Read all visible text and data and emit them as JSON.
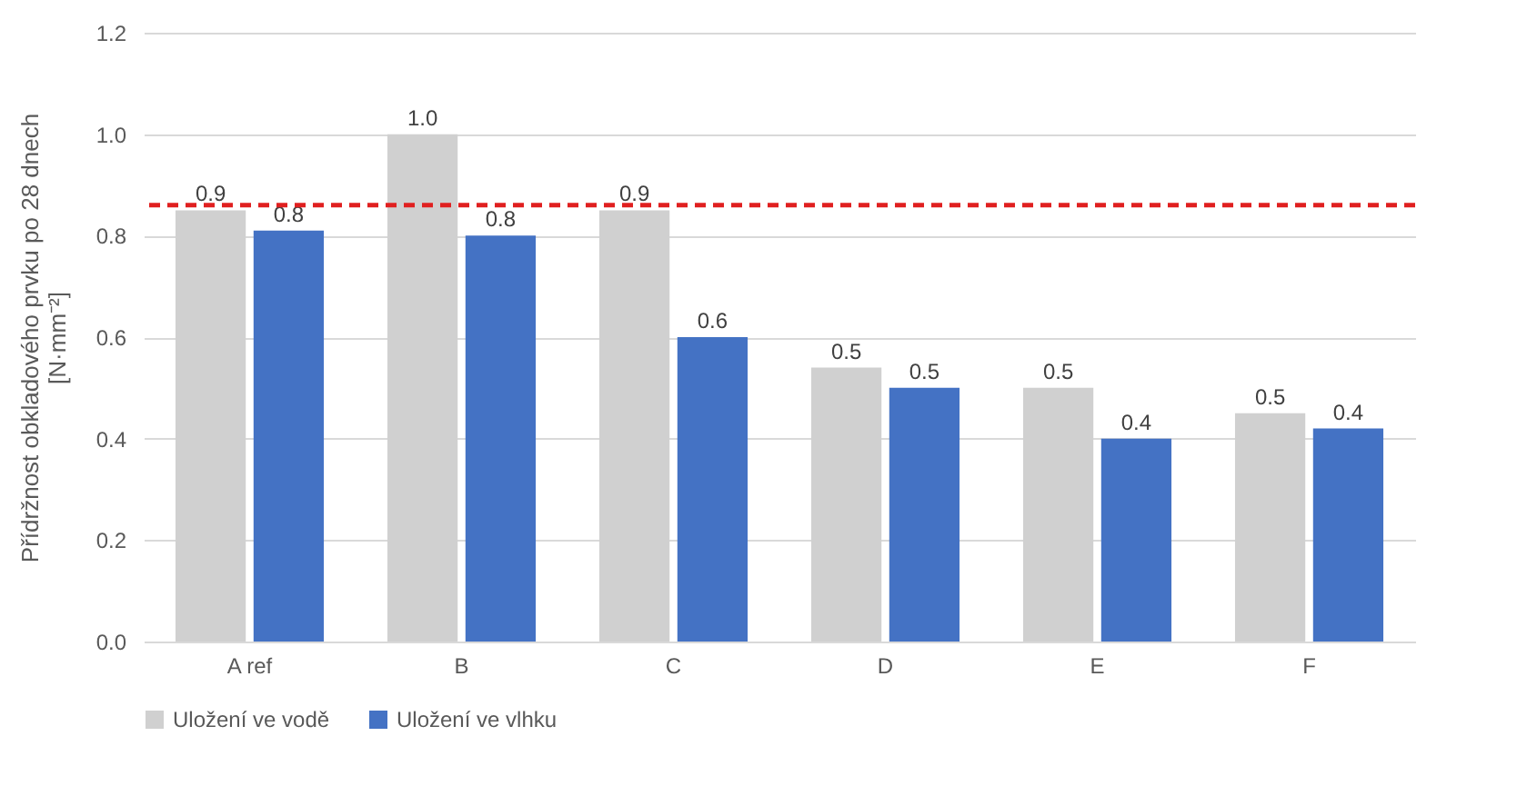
{
  "chart_data": {
    "type": "bar",
    "ylabel": "Přídržnost obkladového prvku po 28 dnech\n[N·mm⁻²]",
    "categories": [
      "A ref",
      "B",
      "C",
      "D",
      "E",
      "F"
    ],
    "series": [
      {
        "name": "Uložení ve vodě",
        "color": "#d0d0d0",
        "values": [
          0.85,
          1.0,
          0.85,
          0.54,
          0.5,
          0.45
        ],
        "value_labels": [
          "0.9",
          "1.0",
          "0.9",
          "0.5",
          "0.5",
          "0.5"
        ]
      },
      {
        "name": "Uložení ve vlhku",
        "color": "#4472c4",
        "values": [
          0.81,
          0.8,
          0.6,
          0.5,
          0.4,
          0.42
        ],
        "value_labels": [
          "0.8",
          "0.8",
          "0.6",
          "0.5",
          "0.4",
          "0.4"
        ]
      }
    ],
    "ylim": [
      0,
      1.2
    ],
    "yticks": [
      {
        "value": 0,
        "label": "0.0"
      },
      0.2,
      0.4,
      0.6,
      0.8,
      {
        "value": 1,
        "label": "1.0"
      },
      1.2
    ],
    "ref_lines": [
      {
        "axis": "y",
        "value": 0.86,
        "color": "#e02020",
        "line_style": "dashed"
      }
    ],
    "grid": "y",
    "legend": "bottom"
  }
}
